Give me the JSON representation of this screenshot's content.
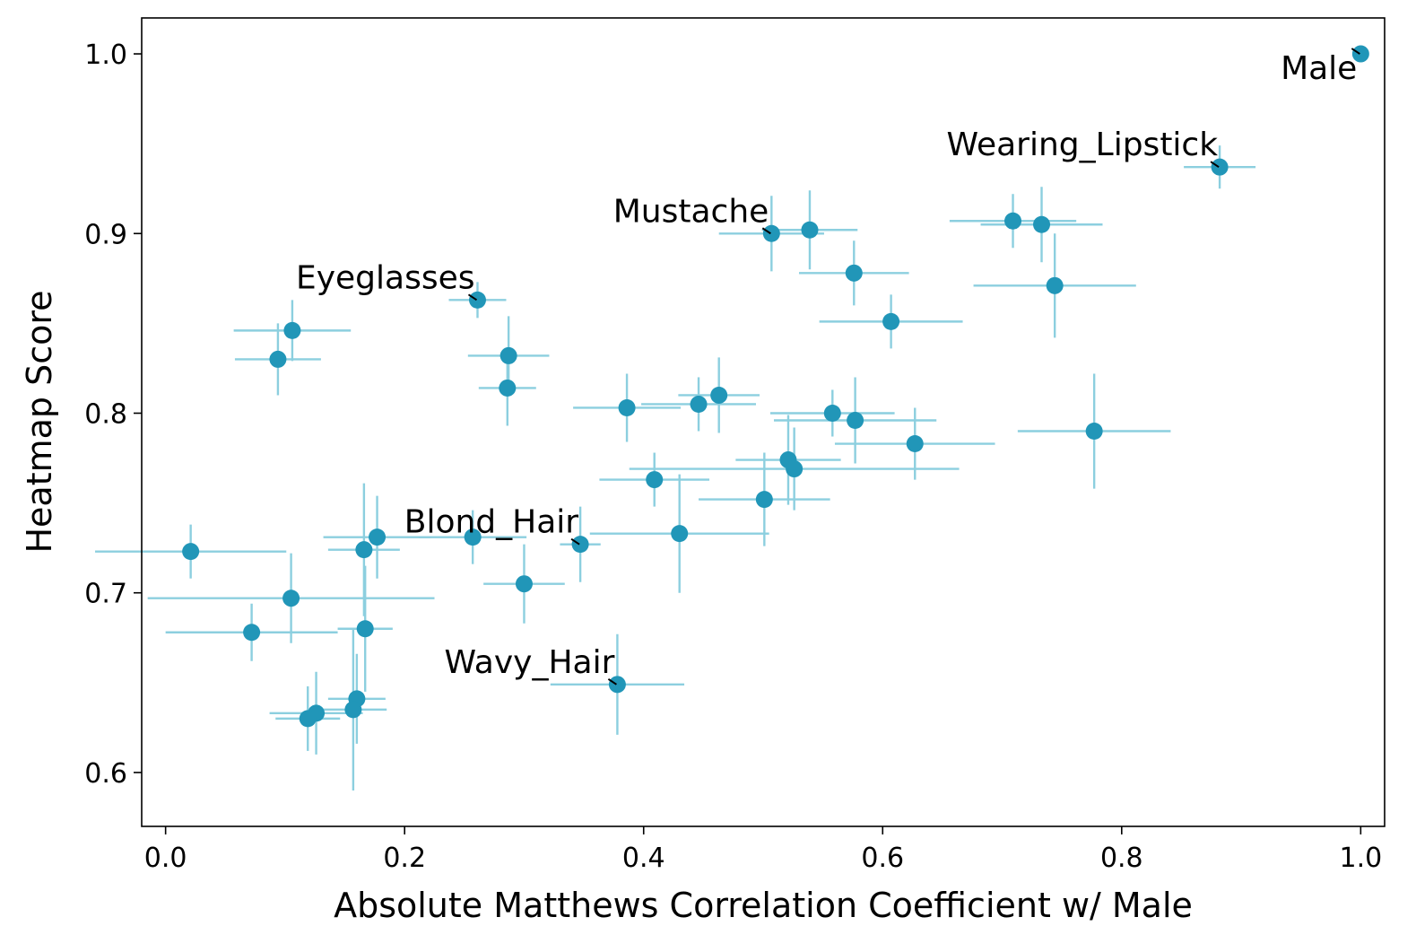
{
  "chart_data": {
    "type": "scatter",
    "title": "",
    "xlabel": "Absolute Matthews Correlation Coefficient w/ Male",
    "ylabel": "Heatmap Score",
    "xlim": [
      -0.02,
      1.02
    ],
    "ylim": [
      0.57,
      1.02
    ],
    "xticks": [
      0.0,
      0.2,
      0.4,
      0.6,
      0.8,
      1.0
    ],
    "xtick_labels": [
      "0.0",
      "0.2",
      "0.4",
      "0.6",
      "0.8",
      "1.0"
    ],
    "yticks": [
      0.6,
      0.7,
      0.8,
      0.9,
      1.0
    ],
    "ytick_labels": [
      "0.6",
      "0.7",
      "0.8",
      "0.9",
      "1.0"
    ],
    "grid": false,
    "colors": {
      "point": "#2196b8",
      "errorbar": "#8ccfdf",
      "annotation_line": "#000000"
    },
    "points": [
      {
        "x": 1.0,
        "y": 1.0,
        "xerr": 0.0,
        "yerr": 0.0
      },
      {
        "x": 0.882,
        "y": 0.937,
        "xerr": 0.03,
        "yerr": 0.012
      },
      {
        "x": 0.709,
        "y": 0.907,
        "xerr": 0.053,
        "yerr": 0.015
      },
      {
        "x": 0.733,
        "y": 0.905,
        "xerr": 0.051,
        "yerr": 0.021
      },
      {
        "x": 0.744,
        "y": 0.871,
        "xerr": 0.068,
        "yerr": 0.029
      },
      {
        "x": 0.507,
        "y": 0.9,
        "xerr": 0.044,
        "yerr": 0.021
      },
      {
        "x": 0.539,
        "y": 0.902,
        "xerr": 0.04,
        "yerr": 0.022
      },
      {
        "x": 0.576,
        "y": 0.878,
        "xerr": 0.046,
        "yerr": 0.018
      },
      {
        "x": 0.607,
        "y": 0.851,
        "xerr": 0.06,
        "yerr": 0.015
      },
      {
        "x": 0.261,
        "y": 0.863,
        "xerr": 0.024,
        "yerr": 0.01
      },
      {
        "x": 0.106,
        "y": 0.846,
        "xerr": 0.049,
        "yerr": 0.017
      },
      {
        "x": 0.094,
        "y": 0.83,
        "xerr": 0.036,
        "yerr": 0.02
      },
      {
        "x": 0.287,
        "y": 0.832,
        "xerr": 0.034,
        "yerr": 0.022
      },
      {
        "x": 0.286,
        "y": 0.814,
        "xerr": 0.024,
        "yerr": 0.021
      },
      {
        "x": 0.386,
        "y": 0.803,
        "xerr": 0.045,
        "yerr": 0.019
      },
      {
        "x": 0.446,
        "y": 0.805,
        "xerr": 0.048,
        "yerr": 0.015
      },
      {
        "x": 0.463,
        "y": 0.81,
        "xerr": 0.034,
        "yerr": 0.021
      },
      {
        "x": 0.558,
        "y": 0.8,
        "xerr": 0.052,
        "yerr": 0.013
      },
      {
        "x": 0.577,
        "y": 0.796,
        "xerr": 0.068,
        "yerr": 0.024
      },
      {
        "x": 0.627,
        "y": 0.783,
        "xerr": 0.067,
        "yerr": 0.02
      },
      {
        "x": 0.777,
        "y": 0.79,
        "xerr": 0.064,
        "yerr": 0.032
      },
      {
        "x": 0.521,
        "y": 0.774,
        "xerr": 0.044,
        "yerr": 0.025
      },
      {
        "x": 0.526,
        "y": 0.769,
        "xerr": 0.138,
        "yerr": 0.023
      },
      {
        "x": 0.409,
        "y": 0.763,
        "xerr": 0.046,
        "yerr": 0.015
      },
      {
        "x": 0.501,
        "y": 0.752,
        "xerr": 0.055,
        "yerr": 0.026
      },
      {
        "x": 0.43,
        "y": 0.733,
        "xerr": 0.075,
        "yerr": 0.033
      },
      {
        "x": 0.347,
        "y": 0.727,
        "xerr": 0.017,
        "yerr": 0.021
      },
      {
        "x": 0.257,
        "y": 0.731,
        "xerr": 0.045,
        "yerr": 0.015
      },
      {
        "x": 0.177,
        "y": 0.731,
        "xerr": 0.045,
        "yerr": 0.023
      },
      {
        "x": 0.166,
        "y": 0.724,
        "xerr": 0.03,
        "yerr": 0.037
      },
      {
        "x": 0.021,
        "y": 0.723,
        "xerr": 0.08,
        "yerr": 0.015
      },
      {
        "x": 0.3,
        "y": 0.705,
        "xerr": 0.034,
        "yerr": 0.022
      },
      {
        "x": 0.105,
        "y": 0.697,
        "xerr": 0.12,
        "yerr": 0.025
      },
      {
        "x": 0.167,
        "y": 0.68,
        "xerr": 0.023,
        "yerr": 0.035
      },
      {
        "x": 0.072,
        "y": 0.678,
        "xerr": 0.072,
        "yerr": 0.016
      },
      {
        "x": 0.378,
        "y": 0.649,
        "xerr": 0.056,
        "yerr": 0.028
      },
      {
        "x": 0.16,
        "y": 0.641,
        "xerr": 0.024,
        "yerr": 0.025
      },
      {
        "x": 0.157,
        "y": 0.635,
        "xerr": 0.028,
        "yerr": 0.045
      },
      {
        "x": 0.126,
        "y": 0.633,
        "xerr": 0.039,
        "yerr": 0.023
      },
      {
        "x": 0.119,
        "y": 0.63,
        "xerr": 0.027,
        "yerr": 0.018
      }
    ],
    "annotations": [
      {
        "label": "Male",
        "x": 1.0,
        "y": 1.0,
        "anchor": "end",
        "dx_px": -4,
        "dy_px": 28
      },
      {
        "label": "Wearing_Lipstick",
        "x": 0.882,
        "y": 0.937,
        "anchor": "end",
        "dx_px": -2,
        "dy_px": -13
      },
      {
        "label": "Mustache",
        "x": 0.507,
        "y": 0.9,
        "anchor": "end",
        "dx_px": -3,
        "dy_px": -13
      },
      {
        "label": "Eyeglasses",
        "x": 0.261,
        "y": 0.863,
        "anchor": "end",
        "dx_px": -3,
        "dy_px": -13
      },
      {
        "label": "Blond_Hair",
        "x": 0.347,
        "y": 0.727,
        "anchor": "end",
        "dx_px": -2,
        "dy_px": -13
      },
      {
        "label": "Wavy_Hair",
        "x": 0.378,
        "y": 0.649,
        "anchor": "end",
        "dx_px": -3,
        "dy_px": -13
      }
    ]
  }
}
